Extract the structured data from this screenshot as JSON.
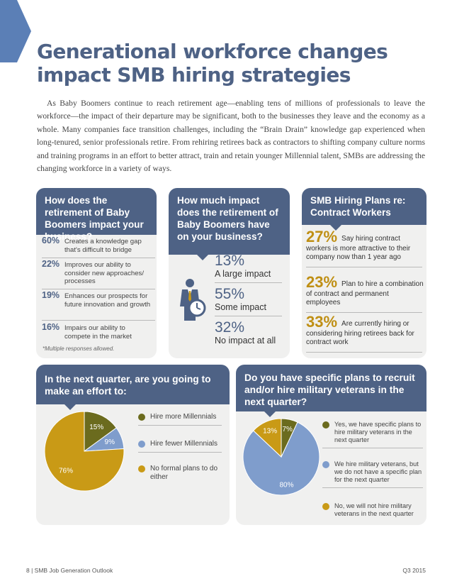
{
  "title_line1": "Generational workforce changes",
  "title_line2": "impact SMB hiring strategies",
  "intro": "As Baby Boomers continue to reach retirement age—enabling tens of millions of professionals to leave the workforce—the impact of their departure may be significant, both to the businesses they leave and the economy as a whole. Many companies face transition challenges, including the “Brain Drain” knowledge gap experienced when long-tenured, senior professionals retire. From rehiring retirees back as contractors to shifting company culture norms and training programs in an effort to better attract, train and retain younger Millennial talent, SMBs are addressing the changing workforce in a variety of ways.",
  "panel1": {
    "heading": "How does the retirement of Baby Boomers impact your business?",
    "items": [
      {
        "pct": "60%",
        "text": "Creates a knowledge gap that's difficult to bridge"
      },
      {
        "pct": "22%",
        "text": "Improves our ability to consider new approaches/ processes"
      },
      {
        "pct": "19%",
        "text": "Enhances our prospects for future innovation and growth"
      },
      {
        "pct": "16%",
        "text": "Impairs our ability to compete in the market"
      }
    ],
    "footnote": "*Multiple responses allowed."
  },
  "panel2": {
    "heading": "How much impact does the retirement of Baby Boomers have on your business?",
    "items": [
      {
        "pct": "13%",
        "label": "A large impact"
      },
      {
        "pct": "55%",
        "label": "Some impact"
      },
      {
        "pct": "32%",
        "label": "No impact at all"
      }
    ],
    "icon": "businessman-clock-icon"
  },
  "panel3": {
    "heading": "SMB Hiring Plans re: Contract Workers",
    "items": [
      {
        "pct": "27%",
        "text": "Say hiring contract workers is more attractive to their company now than 1 year ago"
      },
      {
        "pct": "23%",
        "text": "Plan to hire a combination of contract and permanent employees"
      },
      {
        "pct": "33%",
        "text": "Are currently hiring or considering hiring retirees back for contract work"
      }
    ]
  },
  "colors": {
    "navy": "#4e6285",
    "olive": "#6b6b1e",
    "blue": "#7f9dcc",
    "gold": "#c99a16",
    "panel": "#f0f0ef"
  },
  "chart_data": [
    {
      "type": "pie",
      "title": "In the next quarter, are you going to make an effort to:",
      "categories": [
        "Hire more Millennials",
        "Hire fewer Millennials",
        "No formal plans to do either"
      ],
      "values": [
        15,
        9,
        76
      ],
      "slice_labels": [
        "15%",
        "9%",
        "76%"
      ],
      "colors": [
        "#6b6b1e",
        "#7f9dcc",
        "#c99a16"
      ]
    },
    {
      "type": "pie",
      "title": "Do you have specific plans to recruit and/or hire military veterans in the next quarter?",
      "categories": [
        "Yes, we have specific plans to hire military veterans in the next quarter",
        "We hire military veterans, but we do not have a specific plan for the next quarter",
        "No, we will not hire military veterans in the next quarter"
      ],
      "values": [
        7,
        80,
        13
      ],
      "slice_labels": [
        "7%",
        "80%",
        "13%"
      ],
      "colors": [
        "#6b6b1e",
        "#7f9dcc",
        "#c99a16"
      ]
    }
  ],
  "footer_left": "8  |  SMB Job Generation Outlook",
  "footer_right": "Q3  2015"
}
